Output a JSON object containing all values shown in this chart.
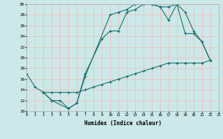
{
  "xlabel": "Humidex (Indice chaleur)",
  "xlim": [
    0,
    23
  ],
  "ylim": [
    10,
    30
  ],
  "yticks": [
    10,
    12,
    14,
    16,
    18,
    20,
    22,
    24,
    26,
    28,
    30
  ],
  "xticks": [
    0,
    1,
    2,
    3,
    4,
    5,
    6,
    7,
    8,
    9,
    10,
    11,
    12,
    13,
    14,
    15,
    16,
    17,
    18,
    19,
    20,
    21,
    22,
    23
  ],
  "background_color": "#cce8e8",
  "grid_color": "#f5b8b8",
  "line_color": "#1a6b6b",
  "curves": [
    {
      "x": [
        0,
        1,
        2,
        3,
        4,
        5,
        6,
        7,
        10,
        11,
        12,
        13,
        14,
        15,
        16,
        17,
        18,
        19,
        20,
        21,
        22
      ],
      "y": [
        17,
        14.5,
        13.5,
        12,
        12,
        10.5,
        11.5,
        16.5,
        28,
        28.5,
        29,
        30,
        30,
        30,
        29.5,
        29.5,
        30,
        28.5,
        25,
        23,
        19.5
      ]
    },
    {
      "x": [
        2,
        3,
        5,
        6,
        7,
        9,
        10,
        11,
        12,
        13,
        14,
        15,
        16,
        17,
        18,
        19,
        20,
        21,
        22
      ],
      "y": [
        13.5,
        12,
        10.5,
        11.5,
        17,
        23.5,
        25,
        25,
        28.5,
        29,
        30,
        30,
        29.5,
        27,
        30,
        24.5,
        24.5,
        23,
        19.5
      ]
    },
    {
      "x": [
        2,
        3,
        4,
        5,
        6,
        7,
        8,
        9,
        10,
        11,
        12,
        13,
        14,
        15,
        16,
        17,
        18,
        19,
        20,
        21,
        22
      ],
      "y": [
        13.5,
        13.5,
        13.5,
        13.5,
        13.5,
        14.0,
        14.5,
        15.0,
        15.5,
        16.0,
        16.5,
        17.0,
        17.5,
        18.0,
        18.5,
        19.0,
        19.0,
        19.0,
        19.0,
        19.0,
        19.5
      ]
    }
  ]
}
